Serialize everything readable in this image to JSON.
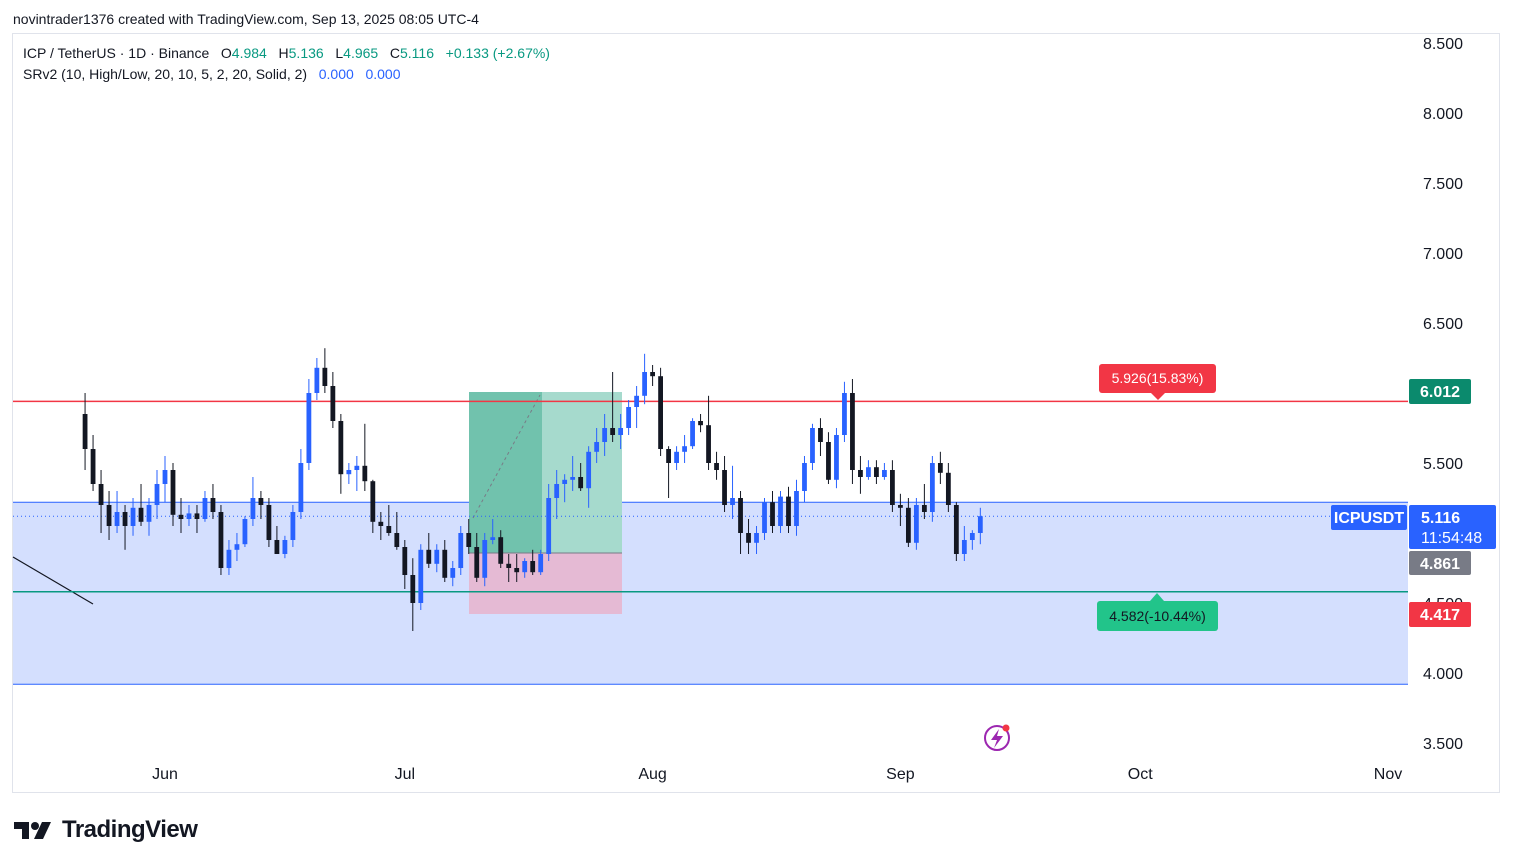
{
  "credit": "novintrader1376 created with TradingView.com, Sep 13, 2025 08:05 UTC-4",
  "legend": {
    "symbol": "ICP / TetherUS · 1D · Binance",
    "o_label": "O",
    "o": "4.984",
    "h_label": "H",
    "h": "5.136",
    "l_label": "L",
    "l": "4.965",
    "c_label": "C",
    "c": "5.116",
    "change": "+0.133 (+2.67%)",
    "indicator": "SRv2 (10, High/Low, 20, 10, 5, 2, 20, Solid, 2)",
    "ind_v1": "0.000",
    "ind_v2": "0.000"
  },
  "price_labels": {
    "resistance": "6.012",
    "symbol_tag": "ICPUSDT",
    "last": "5.116",
    "countdown": "11:54:48",
    "prev": "4.861",
    "support": "4.417"
  },
  "annotations": {
    "target": "5.926(15.83%)",
    "stop": "4.582(-10.44%)"
  },
  "logo": "TradingView",
  "colors": {
    "up": "#2962ff",
    "down": "#131722",
    "resistance": "#f23645",
    "support": "#089981",
    "zone": "#d4dffe"
  },
  "chart_data": {
    "type": "candlestick",
    "symbol": "ICPUSDT",
    "timeframe": "1D",
    "ylim": [
      3.4,
      8.6
    ],
    "y_ticks": [
      "8.500",
      "8.000",
      "7.500",
      "7.000",
      "6.500",
      "5.500",
      "4.500",
      "4.000",
      "3.500"
    ],
    "x_labels": [
      {
        "label": "Jun",
        "date": "2025-06-01"
      },
      {
        "label": "Jul",
        "date": "2025-07-01"
      },
      {
        "label": "Aug",
        "date": "2025-08-01"
      },
      {
        "label": "Sep",
        "date": "2025-09-01"
      },
      {
        "label": "Oct",
        "date": "2025-10-01"
      },
      {
        "label": "Nov",
        "date": "2025-11-01"
      }
    ],
    "levels": {
      "resistance": 5.94,
      "support": 4.58,
      "zone_top": 5.22,
      "zone_bottom": 3.92
    },
    "candles": [
      {
        "date": "2025-05-22",
        "o": 5.85,
        "h": 6.0,
        "l": 5.45,
        "c": 5.6
      },
      {
        "date": "2025-05-23",
        "o": 5.6,
        "h": 5.7,
        "l": 5.3,
        "c": 5.35
      },
      {
        "date": "2025-05-24",
        "o": 5.35,
        "h": 5.45,
        "l": 5.0,
        "c": 5.2
      },
      {
        "date": "2025-05-25",
        "o": 5.2,
        "h": 5.3,
        "l": 4.95,
        "c": 5.05
      },
      {
        "date": "2025-05-26",
        "o": 5.05,
        "h": 5.3,
        "l": 5.0,
        "c": 5.15
      },
      {
        "date": "2025-05-27",
        "o": 5.15,
        "h": 5.2,
        "l": 4.88,
        "c": 5.05
      },
      {
        "date": "2025-05-28",
        "o": 5.05,
        "h": 5.25,
        "l": 4.98,
        "c": 5.18
      },
      {
        "date": "2025-05-29",
        "o": 5.18,
        "h": 5.35,
        "l": 5.05,
        "c": 5.08
      },
      {
        "date": "2025-05-30",
        "o": 5.08,
        "h": 5.25,
        "l": 4.98,
        "c": 5.2
      },
      {
        "date": "2025-05-31",
        "o": 5.2,
        "h": 5.45,
        "l": 5.1,
        "c": 5.35
      },
      {
        "date": "2025-06-01",
        "o": 5.35,
        "h": 5.55,
        "l": 5.22,
        "c": 5.45
      },
      {
        "date": "2025-06-02",
        "o": 5.45,
        "h": 5.5,
        "l": 5.05,
        "c": 5.13
      },
      {
        "date": "2025-06-03",
        "o": 5.13,
        "h": 5.25,
        "l": 5.0,
        "c": 5.1
      },
      {
        "date": "2025-06-04",
        "o": 5.1,
        "h": 5.2,
        "l": 5.05,
        "c": 5.14
      },
      {
        "date": "2025-06-05",
        "o": 5.14,
        "h": 5.2,
        "l": 5.0,
        "c": 5.1
      },
      {
        "date": "2025-06-06",
        "o": 5.1,
        "h": 5.3,
        "l": 5.08,
        "c": 5.25
      },
      {
        "date": "2025-06-07",
        "o": 5.25,
        "h": 5.35,
        "l": 5.1,
        "c": 5.15
      },
      {
        "date": "2025-06-08",
        "o": 5.15,
        "h": 5.2,
        "l": 4.7,
        "c": 4.75
      },
      {
        "date": "2025-06-09",
        "o": 4.75,
        "h": 4.95,
        "l": 4.7,
        "c": 4.88
      },
      {
        "date": "2025-06-10",
        "o": 4.88,
        "h": 5.0,
        "l": 4.8,
        "c": 4.92
      },
      {
        "date": "2025-06-11",
        "o": 4.92,
        "h": 5.12,
        "l": 4.9,
        "c": 5.1
      },
      {
        "date": "2025-06-12",
        "o": 5.1,
        "h": 5.4,
        "l": 5.05,
        "c": 5.25
      },
      {
        "date": "2025-06-13",
        "o": 5.25,
        "h": 5.3,
        "l": 5.1,
        "c": 5.2
      },
      {
        "date": "2025-06-14",
        "o": 5.2,
        "h": 5.25,
        "l": 4.9,
        "c": 4.95
      },
      {
        "date": "2025-06-15",
        "o": 4.95,
        "h": 5.05,
        "l": 4.85,
        "c": 4.85
      },
      {
        "date": "2025-06-16",
        "o": 4.85,
        "h": 4.98,
        "l": 4.82,
        "c": 4.95
      },
      {
        "date": "2025-06-17",
        "o": 4.95,
        "h": 5.2,
        "l": 4.9,
        "c": 5.15
      },
      {
        "date": "2025-06-18",
        "o": 5.15,
        "h": 5.6,
        "l": 5.1,
        "c": 5.5
      },
      {
        "date": "2025-06-19",
        "o": 5.5,
        "h": 6.1,
        "l": 5.45,
        "c": 6.0
      },
      {
        "date": "2025-06-20",
        "o": 6.0,
        "h": 6.25,
        "l": 5.95,
        "c": 6.18
      },
      {
        "date": "2025-06-21",
        "o": 6.18,
        "h": 6.32,
        "l": 6.0,
        "c": 6.05
      },
      {
        "date": "2025-06-22",
        "o": 6.05,
        "h": 6.15,
        "l": 5.75,
        "c": 5.8
      },
      {
        "date": "2025-06-23",
        "o": 5.8,
        "h": 5.85,
        "l": 5.28,
        "c": 5.42
      },
      {
        "date": "2025-06-24",
        "o": 5.42,
        "h": 5.5,
        "l": 5.35,
        "c": 5.45
      },
      {
        "date": "2025-06-25",
        "o": 5.45,
        "h": 5.55,
        "l": 5.3,
        "c": 5.48
      },
      {
        "date": "2025-06-26",
        "o": 5.48,
        "h": 5.78,
        "l": 5.3,
        "c": 5.37
      },
      {
        "date": "2025-06-27",
        "o": 5.37,
        "h": 5.38,
        "l": 5.0,
        "c": 5.08
      },
      {
        "date": "2025-06-28",
        "o": 5.08,
        "h": 5.15,
        "l": 4.95,
        "c": 5.05
      },
      {
        "date": "2025-06-29",
        "o": 5.05,
        "h": 5.2,
        "l": 4.98,
        "c": 5.0
      },
      {
        "date": "2025-06-30",
        "o": 5.0,
        "h": 5.15,
        "l": 4.88,
        "c": 4.9
      },
      {
        "date": "2025-07-01",
        "o": 4.9,
        "h": 4.95,
        "l": 4.6,
        "c": 4.7
      },
      {
        "date": "2025-07-02",
        "o": 4.7,
        "h": 4.82,
        "l": 4.3,
        "c": 4.5
      },
      {
        "date": "2025-07-03",
        "o": 4.5,
        "h": 4.92,
        "l": 4.45,
        "c": 4.88
      },
      {
        "date": "2025-07-04",
        "o": 4.88,
        "h": 5.0,
        "l": 4.75,
        "c": 4.78
      },
      {
        "date": "2025-07-05",
        "o": 4.78,
        "h": 4.92,
        "l": 4.72,
        "c": 4.88
      },
      {
        "date": "2025-07-06",
        "o": 4.88,
        "h": 4.95,
        "l": 4.65,
        "c": 4.68
      },
      {
        "date": "2025-07-07",
        "o": 4.68,
        "h": 4.8,
        "l": 4.62,
        "c": 4.75
      },
      {
        "date": "2025-07-08",
        "o": 4.75,
        "h": 5.05,
        "l": 4.7,
        "c": 5.0
      },
      {
        "date": "2025-07-09",
        "o": 5.0,
        "h": 5.1,
        "l": 4.85,
        "c": 4.9
      },
      {
        "date": "2025-07-10",
        "o": 4.9,
        "h": 5.0,
        "l": 4.65,
        "c": 4.68
      },
      {
        "date": "2025-07-11",
        "o": 4.68,
        "h": 5.0,
        "l": 4.62,
        "c": 4.95
      },
      {
        "date": "2025-07-12",
        "o": 4.95,
        "h": 5.1,
        "l": 4.92,
        "c": 4.97
      },
      {
        "date": "2025-07-13",
        "o": 4.97,
        "h": 5.02,
        "l": 4.75,
        "c": 4.78
      },
      {
        "date": "2025-07-14",
        "o": 4.78,
        "h": 4.85,
        "l": 4.65,
        "c": 4.75
      },
      {
        "date": "2025-07-15",
        "o": 4.75,
        "h": 4.85,
        "l": 4.65,
        "c": 4.72
      },
      {
        "date": "2025-07-16",
        "o": 4.72,
        "h": 4.82,
        "l": 4.68,
        "c": 4.8
      },
      {
        "date": "2025-07-17",
        "o": 4.8,
        "h": 4.88,
        "l": 4.7,
        "c": 4.72
      },
      {
        "date": "2025-07-18",
        "o": 4.72,
        "h": 4.88,
        "l": 4.7,
        "c": 4.85
      },
      {
        "date": "2025-07-19",
        "o": 4.85,
        "h": 5.35,
        "l": 4.8,
        "c": 5.25
      },
      {
        "date": "2025-07-20",
        "o": 5.25,
        "h": 5.45,
        "l": 5.1,
        "c": 5.35
      },
      {
        "date": "2025-07-21",
        "o": 5.35,
        "h": 5.42,
        "l": 5.22,
        "c": 5.38
      },
      {
        "date": "2025-07-22",
        "o": 5.38,
        "h": 5.55,
        "l": 5.3,
        "c": 5.4
      },
      {
        "date": "2025-07-23",
        "o": 5.4,
        "h": 5.5,
        "l": 5.3,
        "c": 5.32
      },
      {
        "date": "2025-07-24",
        "o": 5.32,
        "h": 5.62,
        "l": 5.18,
        "c": 5.58
      },
      {
        "date": "2025-07-25",
        "o": 5.58,
        "h": 5.75,
        "l": 5.5,
        "c": 5.65
      },
      {
        "date": "2025-07-26",
        "o": 5.65,
        "h": 5.85,
        "l": 5.55,
        "c": 5.75
      },
      {
        "date": "2025-07-27",
        "o": 5.75,
        "h": 6.15,
        "l": 5.65,
        "c": 5.7
      },
      {
        "date": "2025-07-28",
        "o": 5.7,
        "h": 5.85,
        "l": 5.6,
        "c": 5.75
      },
      {
        "date": "2025-07-29",
        "o": 5.75,
        "h": 5.95,
        "l": 5.7,
        "c": 5.9
      },
      {
        "date": "2025-07-30",
        "o": 5.9,
        "h": 6.05,
        "l": 5.75,
        "c": 5.98
      },
      {
        "date": "2025-07-31",
        "o": 5.98,
        "h": 6.28,
        "l": 5.92,
        "c": 6.15
      },
      {
        "date": "2025-08-01",
        "o": 6.15,
        "h": 6.2,
        "l": 6.05,
        "c": 6.12
      },
      {
        "date": "2025-08-02",
        "o": 6.12,
        "h": 6.18,
        "l": 5.55,
        "c": 5.6
      },
      {
        "date": "2025-08-03",
        "o": 5.6,
        "h": 5.62,
        "l": 5.25,
        "c": 5.5
      },
      {
        "date": "2025-08-04",
        "o": 5.5,
        "h": 5.62,
        "l": 5.45,
        "c": 5.58
      },
      {
        "date": "2025-08-05",
        "o": 5.58,
        "h": 5.7,
        "l": 5.5,
        "c": 5.62
      },
      {
        "date": "2025-08-06",
        "o": 5.62,
        "h": 5.82,
        "l": 5.6,
        "c": 5.8
      },
      {
        "date": "2025-08-07",
        "o": 5.8,
        "h": 5.85,
        "l": 5.72,
        "c": 5.77
      },
      {
        "date": "2025-08-08",
        "o": 5.77,
        "h": 5.98,
        "l": 5.45,
        "c": 5.5
      },
      {
        "date": "2025-08-09",
        "o": 5.5,
        "h": 5.58,
        "l": 5.38,
        "c": 5.45
      },
      {
        "date": "2025-08-10",
        "o": 5.45,
        "h": 5.55,
        "l": 5.15,
        "c": 5.2
      },
      {
        "date": "2025-08-11",
        "o": 5.2,
        "h": 5.48,
        "l": 5.1,
        "c": 5.25
      },
      {
        "date": "2025-08-12",
        "o": 5.25,
        "h": 5.3,
        "l": 4.85,
        "c": 5.0
      },
      {
        "date": "2025-08-13",
        "o": 5.0,
        "h": 5.1,
        "l": 4.85,
        "c": 4.93
      },
      {
        "date": "2025-08-14",
        "o": 4.93,
        "h": 5.05,
        "l": 4.85,
        "c": 5.0
      },
      {
        "date": "2025-08-15",
        "o": 5.0,
        "h": 5.25,
        "l": 4.95,
        "c": 5.22
      },
      {
        "date": "2025-08-16",
        "o": 5.22,
        "h": 5.3,
        "l": 5.0,
        "c": 5.05
      },
      {
        "date": "2025-08-17",
        "o": 5.05,
        "h": 5.3,
        "l": 5.0,
        "c": 5.26
      },
      {
        "date": "2025-08-18",
        "o": 5.26,
        "h": 5.33,
        "l": 5.0,
        "c": 5.05
      },
      {
        "date": "2025-08-19",
        "o": 5.05,
        "h": 5.38,
        "l": 4.98,
        "c": 5.3
      },
      {
        "date": "2025-08-20",
        "o": 5.3,
        "h": 5.55,
        "l": 5.22,
        "c": 5.5
      },
      {
        "date": "2025-08-21",
        "o": 5.5,
        "h": 5.78,
        "l": 5.45,
        "c": 5.75
      },
      {
        "date": "2025-08-22",
        "o": 5.75,
        "h": 5.82,
        "l": 5.55,
        "c": 5.65
      },
      {
        "date": "2025-08-23",
        "o": 5.65,
        "h": 5.72,
        "l": 5.35,
        "c": 5.38
      },
      {
        "date": "2025-08-24",
        "o": 5.38,
        "h": 5.75,
        "l": 5.32,
        "c": 5.7
      },
      {
        "date": "2025-08-25",
        "o": 5.7,
        "h": 6.08,
        "l": 5.65,
        "c": 6.0
      },
      {
        "date": "2025-08-26",
        "o": 6.0,
        "h": 6.1,
        "l": 5.35,
        "c": 5.45
      },
      {
        "date": "2025-08-27",
        "o": 5.45,
        "h": 5.55,
        "l": 5.28,
        "c": 5.4
      },
      {
        "date": "2025-08-28",
        "o": 5.4,
        "h": 5.52,
        "l": 5.38,
        "c": 5.47
      },
      {
        "date": "2025-08-29",
        "o": 5.47,
        "h": 5.52,
        "l": 5.35,
        "c": 5.4
      },
      {
        "date": "2025-08-30",
        "o": 5.4,
        "h": 5.5,
        "l": 5.38,
        "c": 5.45
      },
      {
        "date": "2025-08-31",
        "o": 5.45,
        "h": 5.52,
        "l": 5.15,
        "c": 5.2
      },
      {
        "date": "2025-09-01",
        "o": 5.2,
        "h": 5.28,
        "l": 5.05,
        "c": 5.18
      },
      {
        "date": "2025-09-02",
        "o": 5.18,
        "h": 5.25,
        "l": 4.9,
        "c": 4.93
      },
      {
        "date": "2025-09-03",
        "o": 4.93,
        "h": 5.25,
        "l": 4.88,
        "c": 5.2
      },
      {
        "date": "2025-09-04",
        "o": 5.2,
        "h": 5.35,
        "l": 5.1,
        "c": 5.15
      },
      {
        "date": "2025-09-05",
        "o": 5.15,
        "h": 5.55,
        "l": 5.08,
        "c": 5.5
      },
      {
        "date": "2025-09-06",
        "o": 5.5,
        "h": 5.58,
        "l": 5.35,
        "c": 5.43
      },
      {
        "date": "2025-09-07",
        "o": 5.43,
        "h": 5.5,
        "l": 5.15,
        "c": 5.2
      },
      {
        "date": "2025-09-08",
        "o": 5.2,
        "h": 5.22,
        "l": 4.8,
        "c": 4.85
      },
      {
        "date": "2025-09-09",
        "o": 4.85,
        "h": 5.05,
        "l": 4.8,
        "c": 4.95
      },
      {
        "date": "2025-09-10",
        "o": 4.95,
        "h": 5.02,
        "l": 4.88,
        "c": 5.0
      },
      {
        "date": "2025-09-11",
        "o": 5.0,
        "h": 5.18,
        "l": 4.92,
        "c": 5.12
      }
    ]
  }
}
